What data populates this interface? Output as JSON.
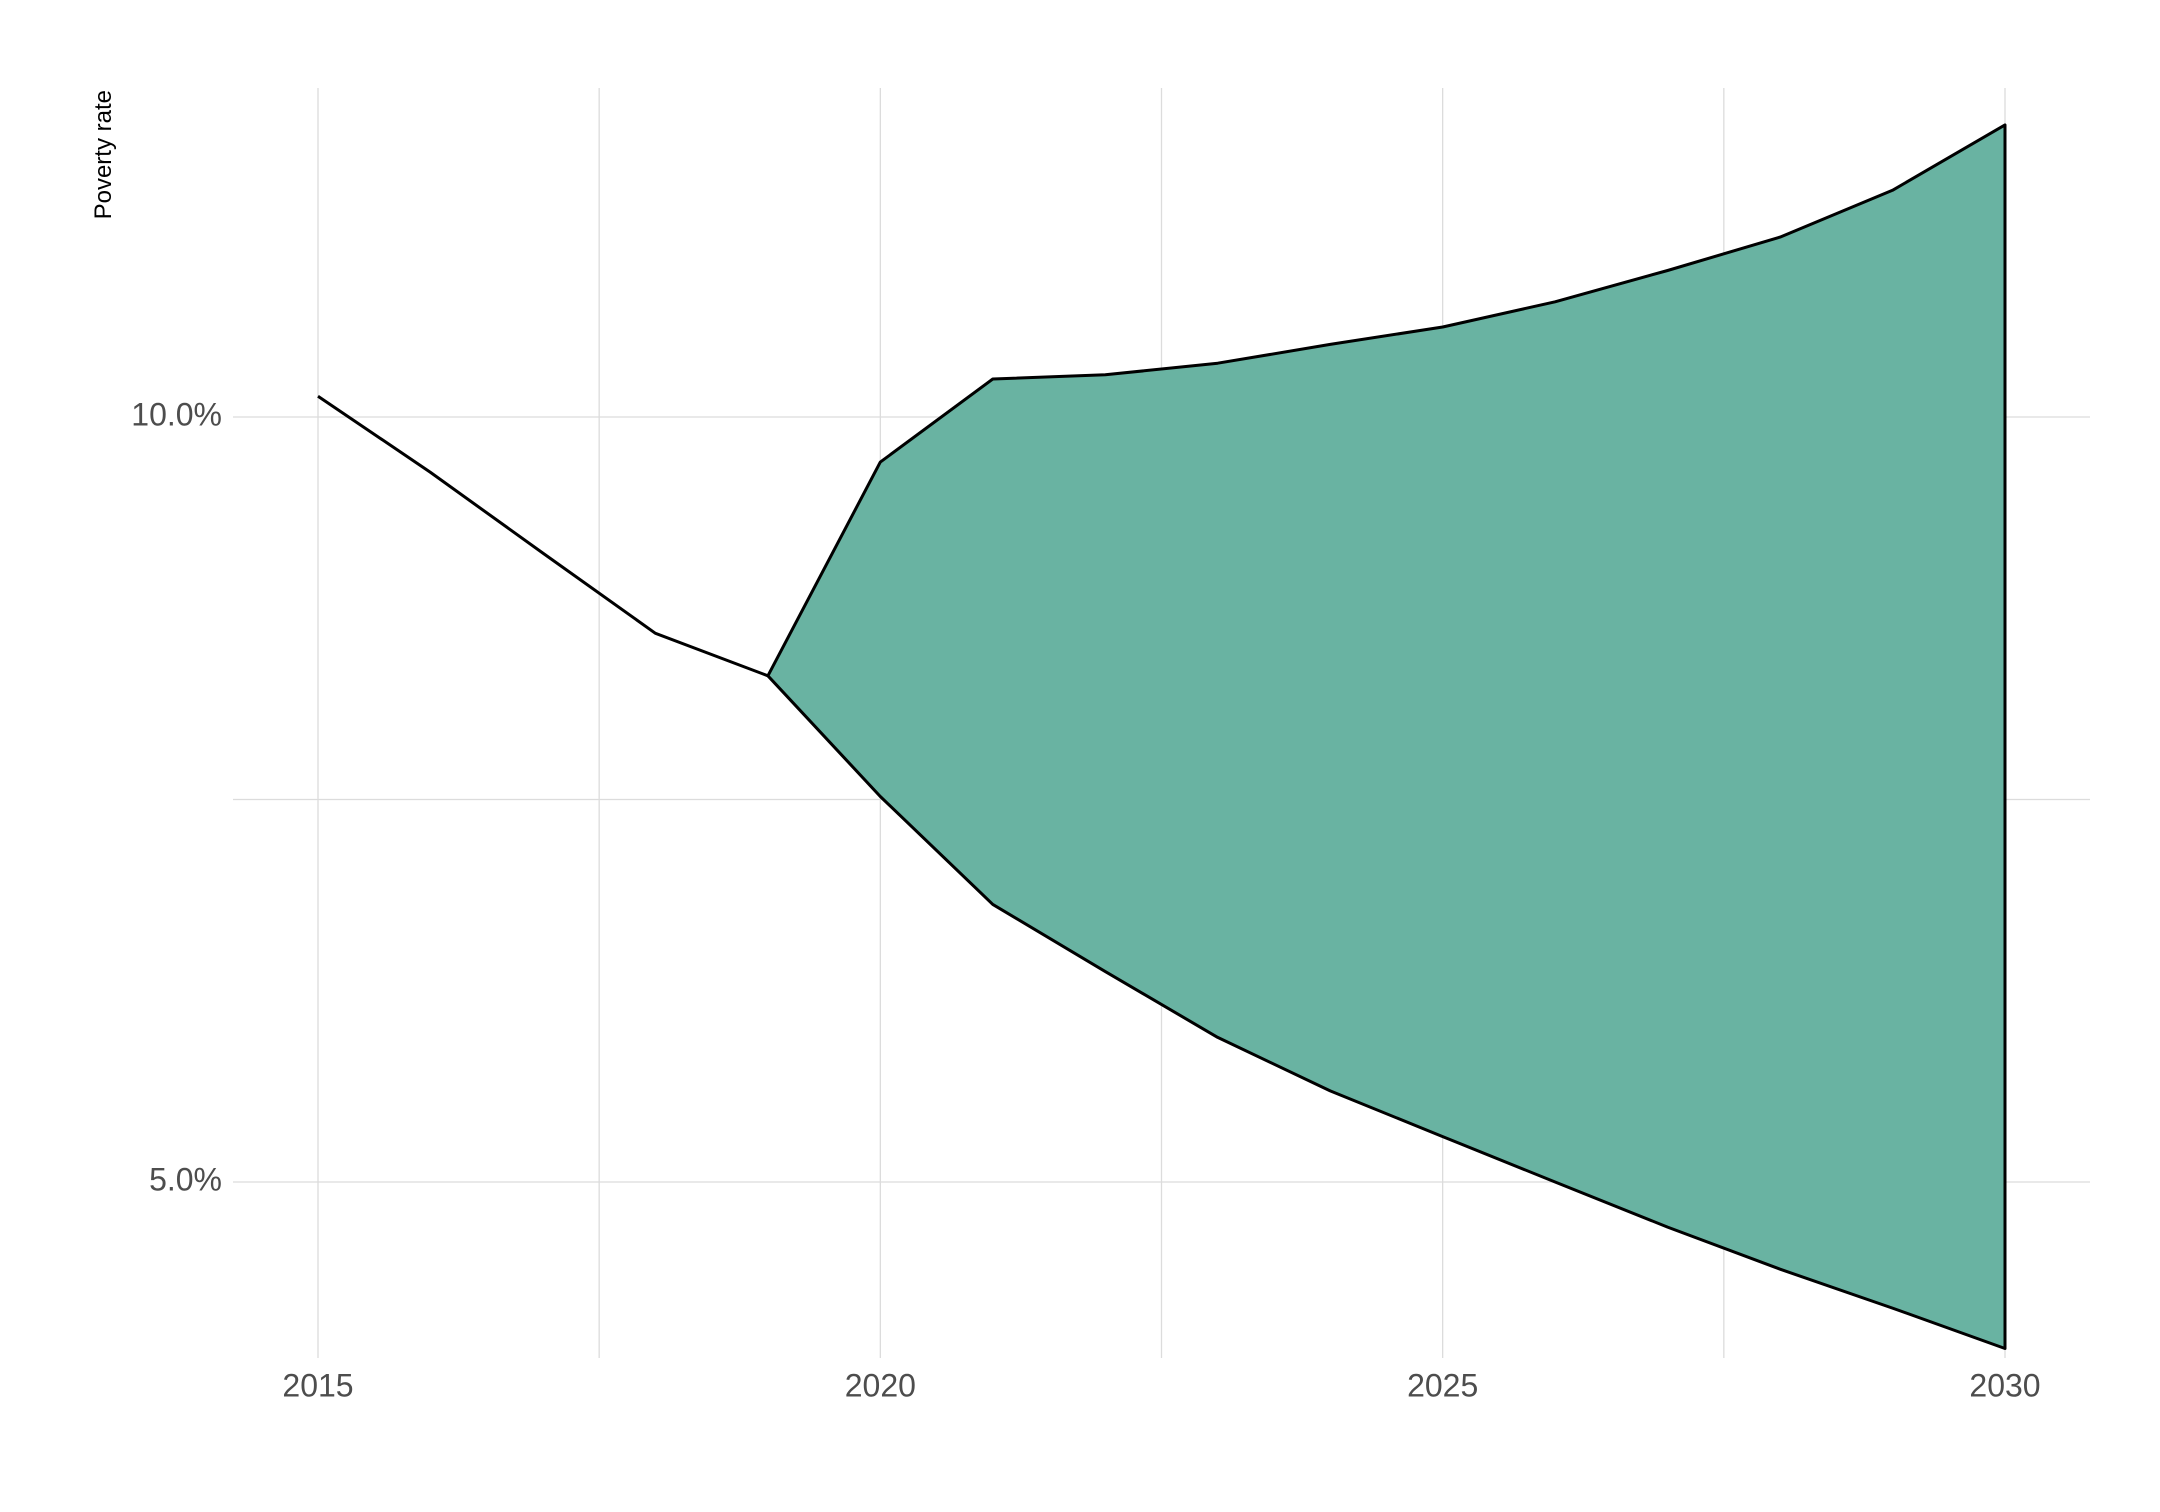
{
  "chart_data": {
    "type": "area",
    "title": "",
    "xlabel": "",
    "ylabel": "Poverty rate",
    "x_ticks": [
      2015,
      2020,
      2025,
      2030
    ],
    "x_tick_labels": [
      "2015",
      "2020",
      "2025",
      "2030"
    ],
    "y_ticks": [
      0.05,
      0.1
    ],
    "y_tick_labels": [
      "5.0%",
      "10.0%"
    ],
    "y_scale": "log",
    "xlim": [
      2014.2,
      2030.8
    ],
    "ylim": [
      0.0418,
      0.124
    ],
    "grid": true,
    "legend": "none",
    "colors": {
      "band_fill": "#69b3a2",
      "line": "#000000",
      "grid": "#dcdcdc",
      "tick_text": "#4d4d4d"
    },
    "series": [
      {
        "role": "history",
        "x": [
          2015,
          2016,
          2017,
          2018,
          2019
        ],
        "y": [
          0.1019,
          0.0951,
          0.0884,
          0.0822,
          0.0791
        ]
      },
      {
        "role": "band",
        "x": [
          2019,
          2020,
          2021,
          2022,
          2023,
          2024,
          2025,
          2026,
          2027,
          2028,
          2029,
          2030
        ],
        "upper": [
          0.0791,
          0.096,
          0.1035,
          0.1039,
          0.105,
          0.1068,
          0.1085,
          0.111,
          0.1142,
          0.1177,
          0.1228,
          0.1303
        ],
        "lower": [
          0.0791,
          0.0709,
          0.0643,
          0.0605,
          0.057,
          0.0543,
          0.0521,
          0.05,
          0.048,
          0.0462,
          0.0446,
          0.043
        ]
      }
    ]
  }
}
